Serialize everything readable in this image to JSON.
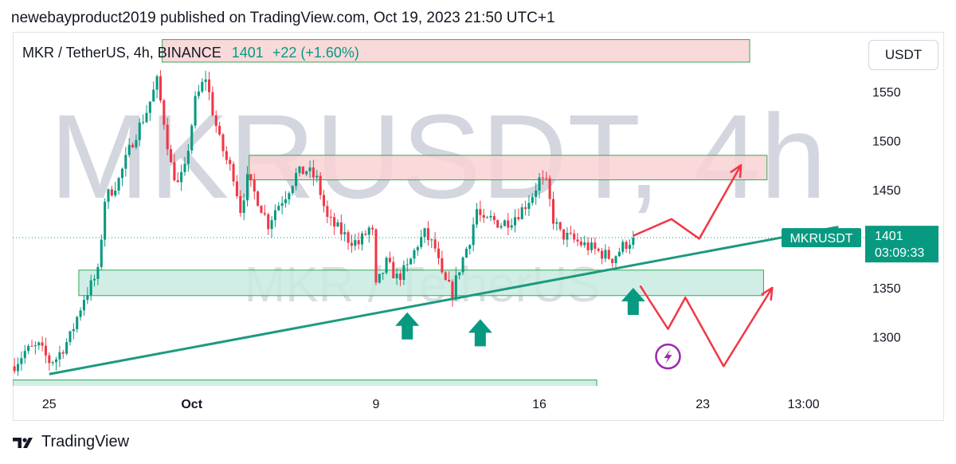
{
  "header": {
    "published": "newebayproduct2019 published on TradingView.com, Oct 19, 2023 21:50 UTC+1"
  },
  "legend": {
    "symbol": "MKR / TetherUS, 4h, BINANCE",
    "price": "1401",
    "change": "+22 (+1.60%)"
  },
  "currency_label": "USDT",
  "watermark": {
    "big": "MKRUSDT, 4h",
    "small": "MKR / TetherUS"
  },
  "price_tag": {
    "symbol": "MKRUSDT",
    "price": "1401",
    "countdown": "03:09:33"
  },
  "footer": {
    "brand": "TradingView",
    "logo_icon": "tradingview-logo-icon"
  },
  "colors": {
    "up": "#089981",
    "down": "#f23645",
    "resistance_fill": "#f8d2d3",
    "support_fill": "#c8ebe0",
    "projection": "#f23645",
    "trendline": "#1d9a7f",
    "arrow": "#089981"
  },
  "chart_data": {
    "type": "candlestick",
    "title": "MKR / TetherUS, 4h, BINANCE",
    "xlabel": "",
    "ylabel": "",
    "ylim": [
      1250,
      1610
    ],
    "yticks": [
      1300,
      1350,
      1400,
      1450,
      1500,
      1550
    ],
    "ytick_labels": [
      "1300",
      "1350",
      "",
      "1450",
      "1500",
      "1550"
    ],
    "xticks": [
      {
        "label": "25",
        "bar": 10
      },
      {
        "label": "Oct",
        "bar": 51
      },
      {
        "label": "9",
        "bar": 104
      },
      {
        "label": "16",
        "bar": 151
      },
      {
        "label": "23",
        "bar": 198
      },
      {
        "label": "13:00",
        "bar": 227
      }
    ],
    "bars_total": 245,
    "last_price": 1401,
    "price_line": 1401,
    "control_points": [
      [
        0,
        1272
      ],
      [
        3,
        1285
      ],
      [
        7,
        1290
      ],
      [
        10,
        1275
      ],
      [
        12,
        1278
      ],
      [
        16,
        1300
      ],
      [
        20,
        1340
      ],
      [
        24,
        1365
      ],
      [
        26,
        1440
      ],
      [
        30,
        1460
      ],
      [
        34,
        1500
      ],
      [
        38,
        1530
      ],
      [
        41,
        1560
      ],
      [
        43,
        1520
      ],
      [
        45,
        1475
      ],
      [
        47,
        1455
      ],
      [
        49,
        1470
      ],
      [
        52,
        1540
      ],
      [
        55,
        1565
      ],
      [
        57,
        1530
      ],
      [
        59,
        1500
      ],
      [
        61,
        1480
      ],
      [
        63,
        1465
      ],
      [
        65,
        1430
      ],
      [
        67,
        1460
      ],
      [
        70,
        1440
      ],
      [
        73,
        1415
      ],
      [
        75,
        1430
      ],
      [
        78,
        1445
      ],
      [
        81,
        1465
      ],
      [
        84,
        1470
      ],
      [
        87,
        1460
      ],
      [
        90,
        1420
      ],
      [
        93,
        1410
      ],
      [
        96,
        1400
      ],
      [
        99,
        1395
      ],
      [
        102,
        1410
      ],
      [
        103,
        1405
      ],
      [
        104,
        1350
      ],
      [
        107,
        1375
      ],
      [
        110,
        1360
      ],
      [
        113,
        1370
      ],
      [
        116,
        1395
      ],
      [
        118,
        1405
      ],
      [
        121,
        1390
      ],
      [
        123,
        1360
      ],
      [
        126,
        1345
      ],
      [
        128,
        1370
      ],
      [
        131,
        1400
      ],
      [
        133,
        1430
      ],
      [
        135,
        1415
      ],
      [
        137,
        1420
      ],
      [
        140,
        1415
      ],
      [
        143,
        1420
      ],
      [
        146,
        1430
      ],
      [
        149,
        1445
      ],
      [
        151,
        1460
      ],
      [
        153,
        1455
      ],
      [
        155,
        1420
      ],
      [
        157,
        1405
      ],
      [
        160,
        1400
      ],
      [
        163,
        1395
      ],
      [
        166,
        1390
      ],
      [
        169,
        1385
      ],
      [
        172,
        1380
      ],
      [
        175,
        1392
      ],
      [
        178,
        1401
      ]
    ],
    "zones": [
      {
        "name": "resistance-top",
        "type": "resistance",
        "price_low": 1580,
        "price_high": 1603,
        "bar_start": 43,
        "bar_end": 212
      },
      {
        "name": "resistance-mid",
        "type": "resistance",
        "price_low": 1460,
        "price_high": 1485,
        "bar_start": 68,
        "bar_end": 217
      },
      {
        "name": "support-mid",
        "type": "support",
        "price_low": 1342,
        "price_high": 1368,
        "bar_start": 19,
        "bar_end": 216
      },
      {
        "name": "support-bottom",
        "type": "support",
        "price_low": 1240,
        "price_high": 1256,
        "bar_start": 0,
        "bar_end": 168
      }
    ],
    "trendline": {
      "from": {
        "bar": 10,
        "price": 1262
      },
      "to": {
        "bar": 237,
        "price": 1412
      }
    },
    "projection_up": [
      [
        178,
        1403
      ],
      [
        189,
        1420
      ],
      [
        197,
        1400
      ],
      [
        209,
        1475
      ]
    ],
    "projection_down": [
      [
        180,
        1352
      ],
      [
        188,
        1308
      ],
      [
        193,
        1340
      ],
      [
        204,
        1270
      ],
      [
        218,
        1350
      ]
    ],
    "arrows_up": [
      {
        "bar": 113,
        "price": 1325
      },
      {
        "bar": 134,
        "price": 1318
      },
      {
        "bar": 178,
        "price": 1350
      }
    ],
    "lightning_icon": {
      "bar": 188,
      "price": 1280,
      "name": "lightning-icon"
    }
  }
}
